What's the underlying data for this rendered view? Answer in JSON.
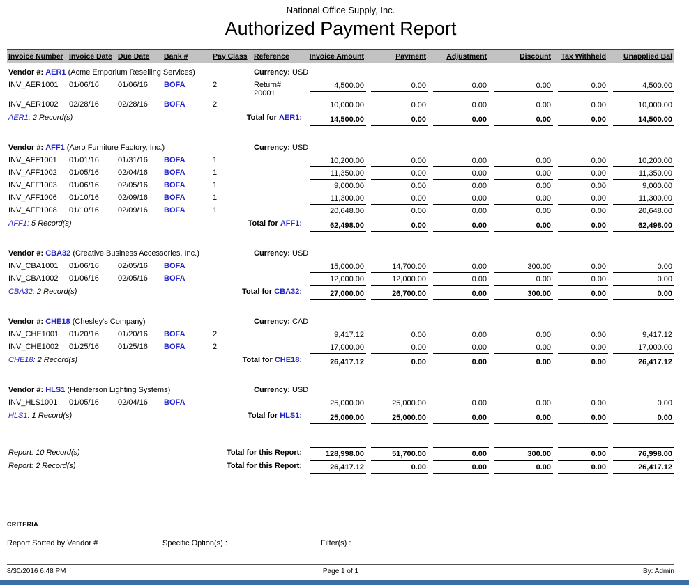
{
  "colors": {
    "link_blue": "#2222cc",
    "header_bg": "#c2c2c2",
    "bottom_bar": "#3a6ea5"
  },
  "page": {
    "company": "National Office Supply, Inc.",
    "title": "Authorized Payment Report"
  },
  "columns": [
    "Invoice Number",
    "Invoice Date",
    "Due Date",
    "Bank #",
    "Pay Class",
    "Reference",
    "Invoice Amount",
    "Payment",
    "Adjustment",
    "Discount",
    "Tax Withheld",
    "Unapplied Bal"
  ],
  "labels": {
    "vendor_prefix": "Vendor #:",
    "currency_prefix": "Currency:",
    "total_for": "Total for"
  },
  "vendors": [
    {
      "code": "AER1",
      "name": "(Acme Emporium Reselling Services)",
      "currency": "USD",
      "rows": [
        {
          "invoice_number": "INV_AER1001",
          "invoice_date": "01/06/16",
          "due_date": "01/06/16",
          "bank": "BOFA",
          "pay_class": "2",
          "reference": "Return# 20001",
          "amounts": [
            "4,500.00",
            "0.00",
            "0.00",
            "0.00",
            "0.00",
            "4,500.00"
          ]
        },
        {
          "invoice_number": "INV_AER1002",
          "invoice_date": "02/28/16",
          "due_date": "02/28/16",
          "bank": "BOFA",
          "pay_class": "2",
          "reference": "",
          "amounts": [
            "10,000.00",
            "0.00",
            "0.00",
            "0.00",
            "0.00",
            "10,000.00"
          ]
        }
      ],
      "record_count": "2 Record(s)",
      "totals": [
        "14,500.00",
        "0.00",
        "0.00",
        "0.00",
        "0.00",
        "14,500.00"
      ]
    },
    {
      "code": "AFF1",
      "name": "(Aero Furniture Factory, Inc.)",
      "currency": "USD",
      "rows": [
        {
          "invoice_number": "INV_AFF1001",
          "invoice_date": "01/01/16",
          "due_date": "01/31/16",
          "bank": "BOFA",
          "pay_class": "1",
          "reference": "",
          "amounts": [
            "10,200.00",
            "0.00",
            "0.00",
            "0.00",
            "0.00",
            "10,200.00"
          ]
        },
        {
          "invoice_number": "INV_AFF1002",
          "invoice_date": "01/05/16",
          "due_date": "02/04/16",
          "bank": "BOFA",
          "pay_class": "1",
          "reference": "",
          "amounts": [
            "11,350.00",
            "0.00",
            "0.00",
            "0.00",
            "0.00",
            "11,350.00"
          ]
        },
        {
          "invoice_number": "INV_AFF1003",
          "invoice_date": "01/06/16",
          "due_date": "02/05/16",
          "bank": "BOFA",
          "pay_class": "1",
          "reference": "",
          "amounts": [
            "9,000.00",
            "0.00",
            "0.00",
            "0.00",
            "0.00",
            "9,000.00"
          ]
        },
        {
          "invoice_number": "INV_AFF1006",
          "invoice_date": "01/10/16",
          "due_date": "02/09/16",
          "bank": "BOFA",
          "pay_class": "1",
          "reference": "",
          "amounts": [
            "11,300.00",
            "0.00",
            "0.00",
            "0.00",
            "0.00",
            "11,300.00"
          ]
        },
        {
          "invoice_number": "INV_AFF1008",
          "invoice_date": "01/10/16",
          "due_date": "02/09/16",
          "bank": "BOFA",
          "pay_class": "1",
          "reference": "",
          "amounts": [
            "20,648.00",
            "0.00",
            "0.00",
            "0.00",
            "0.00",
            "20,648.00"
          ]
        }
      ],
      "record_count": "5 Record(s)",
      "totals": [
        "62,498.00",
        "0.00",
        "0.00",
        "0.00",
        "0.00",
        "62,498.00"
      ]
    },
    {
      "code": "CBA32",
      "name": "(Creative Business Accessories, Inc.)",
      "currency": "USD",
      "rows": [
        {
          "invoice_number": "INV_CBA1001",
          "invoice_date": "01/06/16",
          "due_date": "02/05/16",
          "bank": "BOFA",
          "pay_class": "",
          "reference": "",
          "amounts": [
            "15,000.00",
            "14,700.00",
            "0.00",
            "300.00",
            "0.00",
            "0.00"
          ]
        },
        {
          "invoice_number": "INV_CBA1002",
          "invoice_date": "01/06/16",
          "due_date": "02/05/16",
          "bank": "BOFA",
          "pay_class": "",
          "reference": "",
          "amounts": [
            "12,000.00",
            "12,000.00",
            "0.00",
            "0.00",
            "0.00",
            "0.00"
          ]
        }
      ],
      "record_count": "2 Record(s)",
      "totals": [
        "27,000.00",
        "26,700.00",
        "0.00",
        "300.00",
        "0.00",
        "0.00"
      ]
    },
    {
      "code": "CHE18",
      "name": "(Chesley's Company)",
      "currency": "CAD",
      "rows": [
        {
          "invoice_number": "INV_CHE1001",
          "invoice_date": "01/20/16",
          "due_date": "01/20/16",
          "bank": "BOFA",
          "pay_class": "2",
          "reference": "",
          "amounts": [
            "9,417.12",
            "0.00",
            "0.00",
            "0.00",
            "0.00",
            "9,417.12"
          ]
        },
        {
          "invoice_number": "INV_CHE1002",
          "invoice_date": "01/25/16",
          "due_date": "01/25/16",
          "bank": "BOFA",
          "pay_class": "2",
          "reference": "",
          "amounts": [
            "17,000.00",
            "0.00",
            "0.00",
            "0.00",
            "0.00",
            "17,000.00"
          ]
        }
      ],
      "record_count": "2 Record(s)",
      "totals": [
        "26,417.12",
        "0.00",
        "0.00",
        "0.00",
        "0.00",
        "26,417.12"
      ]
    },
    {
      "code": "HLS1",
      "name": "(Henderson Lighting Systems)",
      "currency": "USD",
      "rows": [
        {
          "invoice_number": "INV_HLS1001",
          "invoice_date": "01/05/16",
          "due_date": "02/04/16",
          "bank": "BOFA",
          "pay_class": "",
          "reference": "",
          "amounts": [
            "25,000.00",
            "25,000.00",
            "0.00",
            "0.00",
            "0.00",
            "0.00"
          ]
        }
      ],
      "record_count": "1 Record(s)",
      "totals": [
        "25,000.00",
        "25,000.00",
        "0.00",
        "0.00",
        "0.00",
        "0.00"
      ]
    }
  ],
  "report_totals": [
    {
      "records": "Report: 10 Record(s)",
      "label": "Total for this Report:",
      "totals": [
        "128,998.00",
        "51,700.00",
        "0.00",
        "300.00",
        "0.00",
        "76,998.00"
      ]
    },
    {
      "records": "Report: 2 Record(s)",
      "label": "Total for this Report:",
      "totals": [
        "26,417.12",
        "0.00",
        "0.00",
        "0.00",
        "0.00",
        "26,417.12"
      ]
    }
  ],
  "criteria": {
    "heading": "CRITERIA",
    "sorted_by": "Report Sorted by Vendor #",
    "specific_options_label": "Specific Option(s) :",
    "filters_label": "Filter(s) :"
  },
  "footer": {
    "datetime": "8/30/2016 6:48 PM",
    "page": "Page 1 of 1",
    "by": "By: Admin"
  }
}
